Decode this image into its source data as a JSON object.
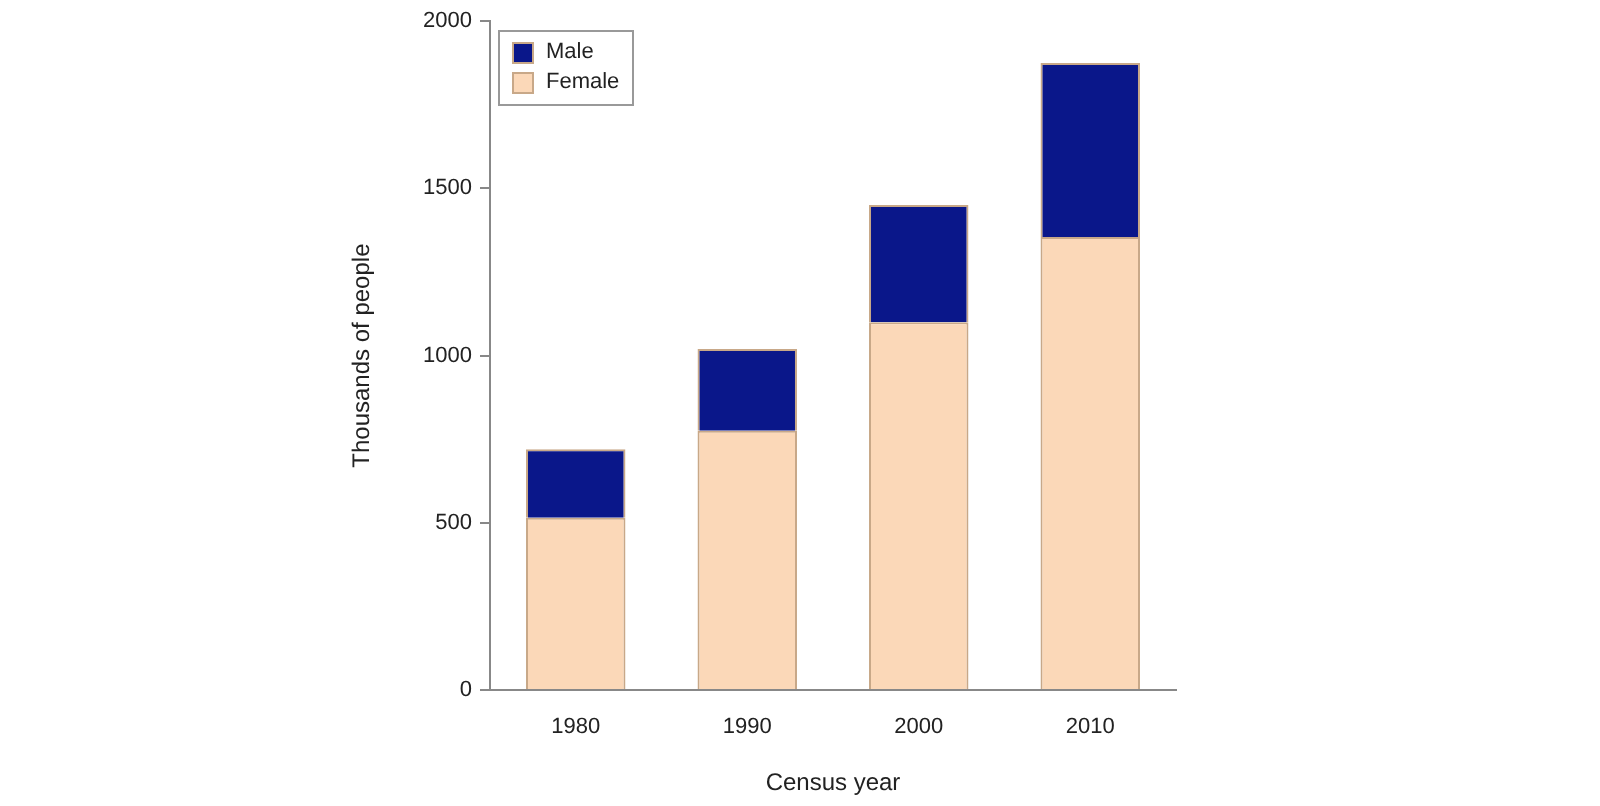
{
  "chart_data": {
    "type": "bar",
    "xlabel": "Census year",
    "ylabel": "Thousands of people",
    "categories": [
      "1980",
      "1990",
      "2000",
      "2010"
    ],
    "stacked": true,
    "series": [
      {
        "name": "Female",
        "color": "#fbd8b8",
        "values": [
          515,
          775,
          1100,
          1355
        ]
      },
      {
        "name": "Male",
        "color": "#0a178a",
        "values": [
          205,
          245,
          350,
          520
        ]
      }
    ],
    "ylim": [
      0,
      2000
    ],
    "yticks": [
      0,
      500,
      1000,
      1500,
      2000
    ],
    "grid": false,
    "legend": "top left"
  }
}
